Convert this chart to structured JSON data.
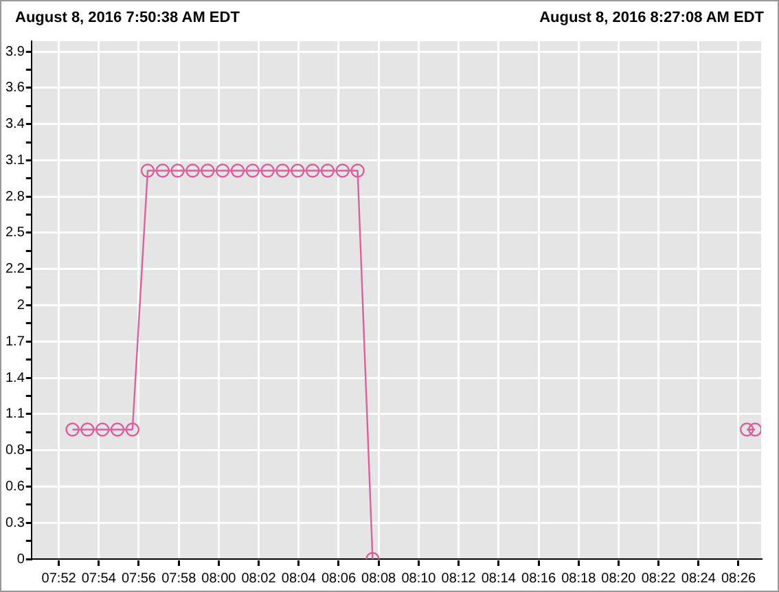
{
  "chart_data": {
    "type": "line",
    "title": "August 8, 2016 7:50:38 AM EDT",
    "subtitle": "August 8, 2016 8:27:08 AM EDT",
    "x": [
      7.8781,
      7.8906,
      7.9031,
      7.9156,
      7.9281,
      7.9408,
      7.9533,
      7.9658,
      7.9783,
      7.9908,
      8.0033,
      8.0158,
      8.0283,
      8.0408,
      8.0533,
      8.0658,
      8.0783,
      8.0908,
      8.1033,
      8.1158,
      8.1283,
      8.2,
      8.4403,
      8.4472
    ],
    "series": [
      {
        "color": "#d9609c",
        "values": [
          1,
          1,
          1,
          1,
          1,
          3,
          3,
          3,
          3,
          3,
          3,
          3,
          3,
          3,
          3,
          3,
          3,
          3,
          3,
          3,
          0,
          null,
          1,
          1
        ]
      }
    ],
    "xlim": [
      7.8439,
      8.4522
    ],
    "xticks": [
      {
        "value": 7.8667,
        "label": "07:52"
      },
      {
        "value": 7.9,
        "label": "07:54"
      },
      {
        "value": 7.9333,
        "label": "07:56"
      },
      {
        "value": 7.9667,
        "label": "07:58"
      },
      {
        "value": 8,
        "label": "08:00"
      },
      {
        "value": 8.0333,
        "label": "08:02"
      },
      {
        "value": 8.0667,
        "label": "08:04"
      },
      {
        "value": 8.1,
        "label": "08:06"
      },
      {
        "value": 8.1333,
        "label": "08:08"
      },
      {
        "value": 8.1667,
        "label": "08:10"
      },
      {
        "value": 8.2,
        "label": "08:12"
      },
      {
        "value": 8.2333,
        "label": "08:14"
      },
      {
        "value": 8.2667,
        "label": "08:16"
      },
      {
        "value": 8.3,
        "label": "08:18"
      },
      {
        "value": 8.3333,
        "label": "08:20"
      },
      {
        "value": 8.3667,
        "label": "08:22"
      },
      {
        "value": 8.4,
        "label": "08:24"
      },
      {
        "value": 8.4333,
        "label": "08:26"
      }
    ],
    "ylim": [
      0,
      4
    ],
    "yticks": [
      0,
      {
        "value": 0.14,
        "label": null
      },
      {
        "value": 0.28,
        "label": "0.3"
      },
      {
        "value": 0.42,
        "label": null
      },
      {
        "value": 0.56,
        "label": "0.6"
      },
      {
        "value": 0.7,
        "label": null
      },
      {
        "value": 0.84,
        "label": "0.8"
      },
      {
        "value": 0.98,
        "label": null
      },
      {
        "value": 1.12,
        "label": "1.1"
      },
      {
        "value": 1.26,
        "label": null
      },
      {
        "value": 1.4,
        "label": "1.4"
      },
      {
        "value": 1.54,
        "label": null
      },
      {
        "value": 1.68,
        "label": "1.7"
      },
      {
        "value": 1.82,
        "label": null
      },
      {
        "value": 1.96,
        "label": "2"
      },
      {
        "value": 2.1,
        "label": null
      },
      {
        "value": 2.24,
        "label": "2.2"
      },
      {
        "value": 2.38,
        "label": null
      },
      {
        "value": 2.52,
        "label": "2.5"
      },
      {
        "value": 2.66,
        "label": null
      },
      {
        "value": 2.8,
        "label": "2.8"
      },
      {
        "value": 2.94,
        "label": null
      },
      {
        "value": 3.08,
        "label": "3.1"
      },
      {
        "value": 3.22,
        "label": null
      },
      {
        "value": 3.36,
        "label": "3.4"
      },
      {
        "value": 3.5,
        "label": null
      },
      {
        "value": 3.64,
        "label": "3.6"
      },
      {
        "value": 3.78,
        "label": null
      },
      {
        "value": 3.92,
        "label": "3.9"
      }
    ],
    "grid": true,
    "legend": false,
    "marker": "circle",
    "line_style": "solid"
  }
}
